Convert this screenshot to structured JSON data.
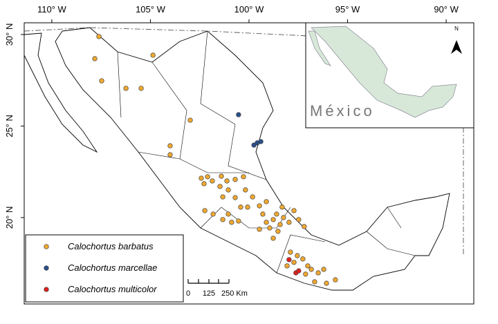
{
  "chart_data": {
    "type": "scatter",
    "xlim": [
      -111.4,
      -88.6
    ],
    "ylim": [
      15.28,
      30.64
    ],
    "xticks": [
      {
        "value": -110,
        "label": "110° W"
      },
      {
        "value": -105,
        "label": "105° W"
      },
      {
        "value": -100,
        "label": "100° W"
      },
      {
        "value": -95,
        "label": "95° W"
      },
      {
        "value": -90,
        "label": "90° W"
      }
    ],
    "yticks": [
      {
        "value": 20,
        "label": "20° N"
      },
      {
        "value": 25,
        "label": "25° N"
      },
      {
        "value": 30,
        "label": "30° N"
      }
    ],
    "series": [
      {
        "name": "Calochortus barbatus",
        "color": "#f0a830",
        "x": [
          -107.61,
          -107.82,
          -107.47,
          -104.87,
          -106.24,
          -105.47,
          -102.98,
          -104.0,
          -104.0,
          -102.42,
          -102.1,
          -101.86,
          -102.28,
          -101.4,
          -101.12,
          -101.47,
          -100.7,
          -100.28,
          -101.33,
          -101.05,
          -100.7,
          -100.18,
          -99.82,
          -100.42,
          -100.07,
          -99.47,
          -99.12,
          -102.24,
          -101.82,
          -101.33,
          -100.88,
          -100.53,
          -101.05,
          -99.3,
          -99.12,
          -98.95,
          -98.77,
          -98.6,
          -98.42,
          -98.25,
          -97.97,
          -98.53,
          -98.77,
          -97.48,
          -97.72,
          -97.2,
          -98.32,
          -99.47,
          -97.9,
          -97.55,
          -97.72,
          -97.27,
          -97.02,
          -98.07,
          -96.84,
          -96.49,
          -96.21,
          -97.13,
          -96.67,
          -96.07,
          -95.62
        ],
        "values": [
          29.89,
          28.68,
          27.47,
          28.87,
          27.06,
          27.06,
          25.32,
          23.92,
          23.43,
          22.15,
          22.23,
          22.0,
          21.85,
          22.26,
          22.0,
          21.7,
          22.08,
          22.23,
          21.13,
          21.51,
          21.09,
          21.51,
          21.13,
          20.57,
          20.57,
          20.64,
          20.87,
          20.38,
          20.19,
          19.89,
          19.74,
          19.81,
          20.19,
          20.19,
          19.74,
          19.43,
          19.89,
          20.19,
          19.62,
          20.0,
          19.74,
          19.25,
          18.87,
          19.89,
          20.38,
          19.51,
          20.57,
          19.36,
          18.11,
          17.92,
          17.55,
          17.74,
          17.36,
          17.36,
          17.17,
          16.98,
          17.17,
          16.91,
          16.49,
          16.41,
          16.6
        ]
      },
      {
        "name": "Calochortus marcellae",
        "color": "#2a4f8a",
        "x": [
          -100.53,
          -99.75,
          -99.58,
          -99.4
        ],
        "values": [
          25.62,
          23.96,
          24.08,
          24.15
        ]
      },
      {
        "name": "Calochortus multicolor",
        "color": "#e0201c",
        "x": [
          -97.97,
          -97.62,
          -97.48
        ],
        "values": [
          17.7,
          16.98,
          17.09
        ]
      }
    ]
  },
  "scale_bar": {
    "labels": [
      "0",
      "125",
      "250 Km"
    ]
  },
  "inset": {
    "label": "México",
    "north": "N"
  }
}
